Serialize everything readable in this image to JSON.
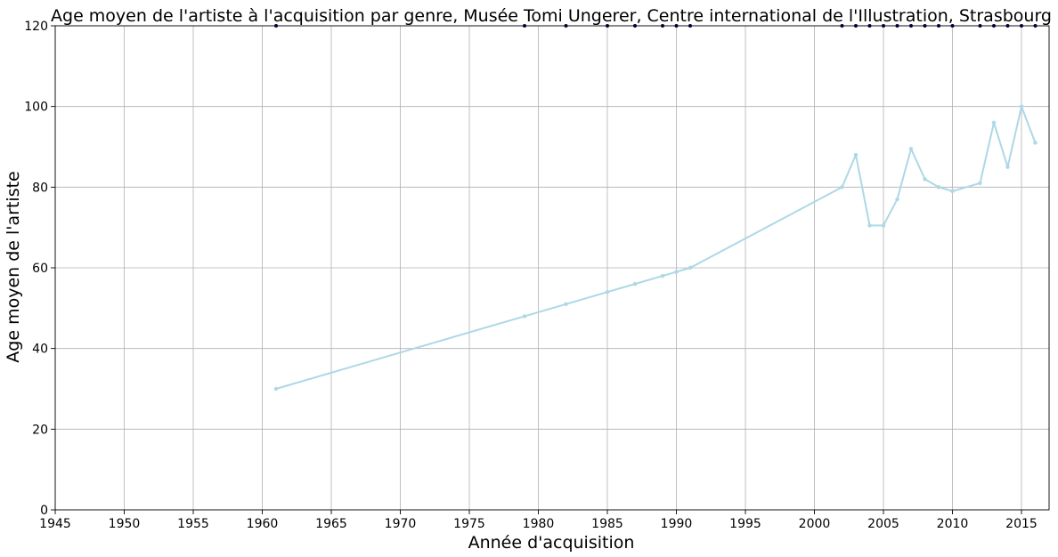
{
  "chart_data": {
    "type": "line",
    "title": "Age moyen de l'artiste à l'acquisition par genre, Musée Tomi Ungerer, Centre international de l'Illustration, Strasbourg",
    "xlabel": "Année d'acquisition",
    "ylabel": "Age moyen de l'artiste",
    "xlim": [
      1945,
      2017
    ],
    "ylim": [
      0,
      120
    ],
    "xticks": [
      1945,
      1950,
      1955,
      1960,
      1965,
      1970,
      1975,
      1980,
      1985,
      1990,
      1995,
      2000,
      2005,
      2010,
      2015
    ],
    "yticks": [
      0,
      20,
      40,
      60,
      80,
      100,
      120
    ],
    "grid": true,
    "colors": {
      "line": "#add8e6",
      "top_markers": "#00004d"
    },
    "series": [
      {
        "name": "Age moyen",
        "x": [
          1961,
          1979,
          1982,
          1985,
          1987,
          1989,
          1990,
          1991,
          2002,
          2003,
          2004,
          2005,
          2006,
          2007,
          2008,
          2009,
          2010,
          2012,
          2013,
          2014,
          2015,
          2016
        ],
        "values": [
          30,
          48,
          51,
          54,
          56,
          58,
          59,
          60,
          80,
          88,
          70.5,
          70.5,
          77,
          89.5,
          82,
          80,
          79,
          81,
          96,
          85,
          100,
          91
        ]
      }
    ],
    "top_markers_x": [
      1961,
      1979,
      1982,
      1985,
      1987,
      1989,
      1990,
      1991,
      2002,
      2003,
      2004,
      2005,
      2006,
      2007,
      2008,
      2009,
      2010,
      2012,
      2013,
      2014,
      2015,
      2016
    ]
  }
}
